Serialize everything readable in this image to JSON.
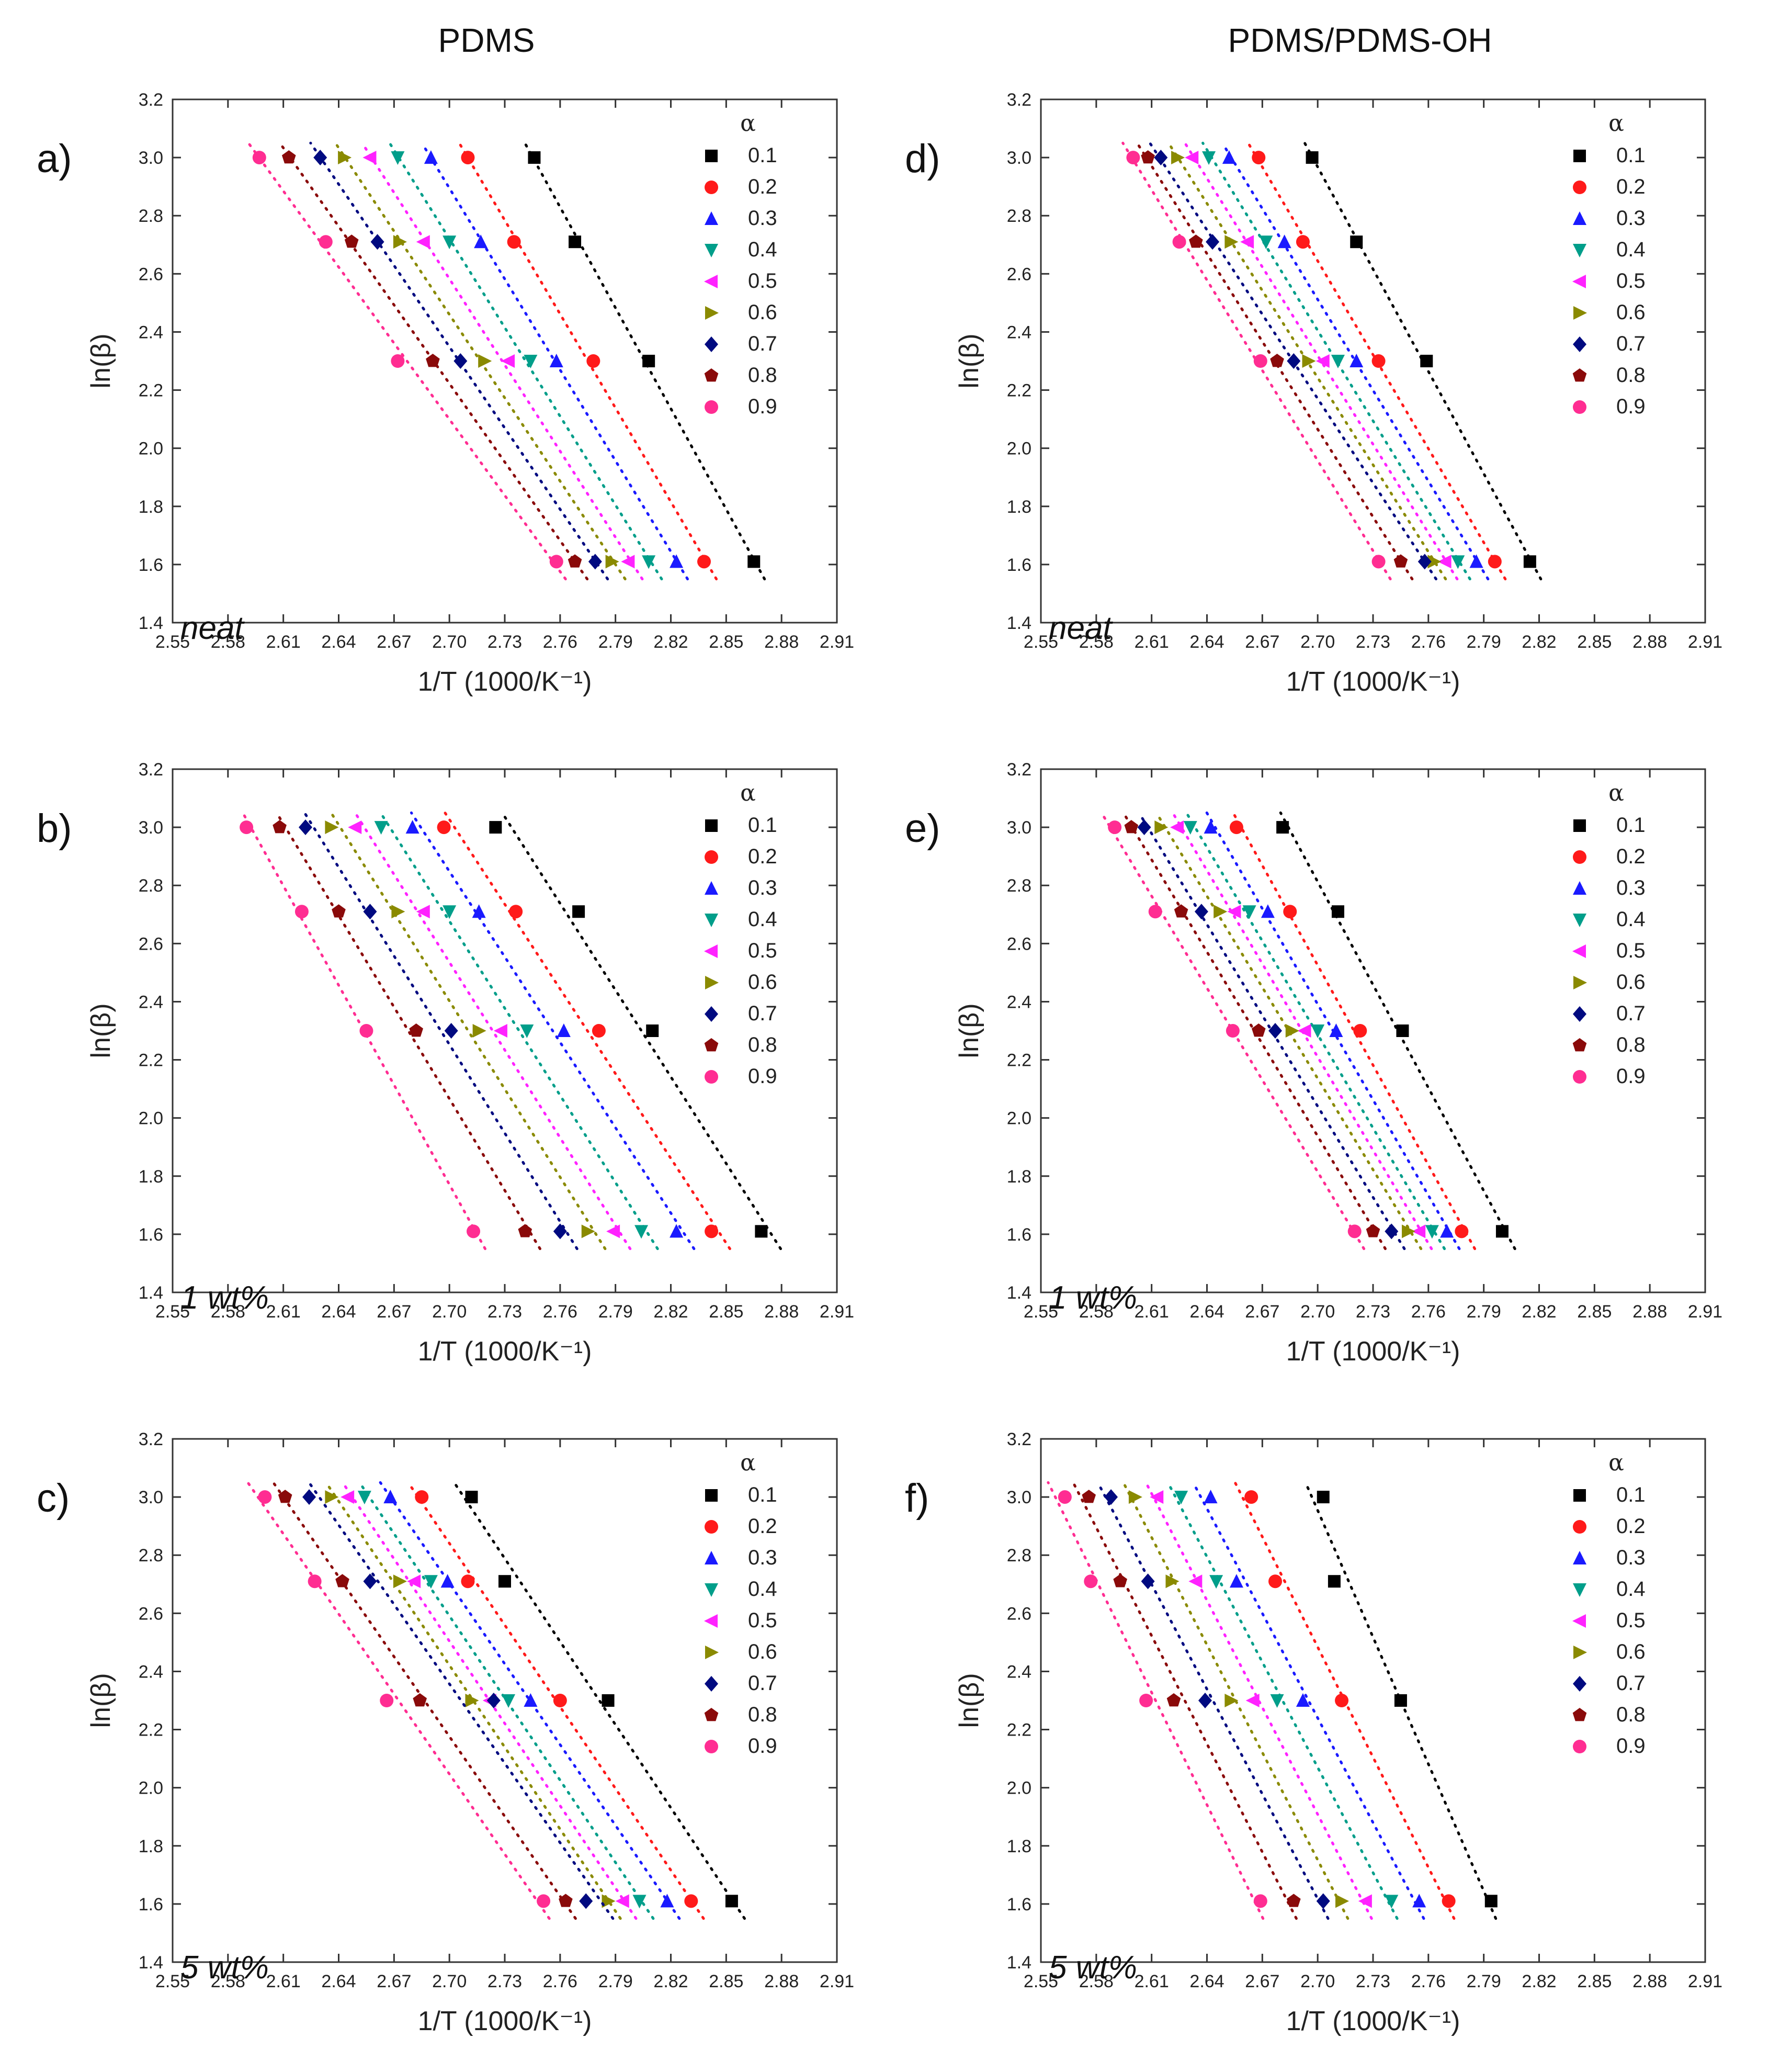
{
  "headers": {
    "left": "PDMS",
    "right": "PDMS/PDMS-OH"
  },
  "legend": {
    "title": "α",
    "series_names": [
      "0.1",
      "0.2",
      "0.3",
      "0.4",
      "0.5",
      "0.6",
      "0.7",
      "0.8",
      "0.9"
    ]
  },
  "series_colors": [
    "#000000",
    "#ff1a1a",
    "#1a1aff",
    "#009e8a",
    "#ff22ff",
    "#8a8a00",
    "#000a80",
    "#8a0a0a",
    "#ff2d92"
  ],
  "series_markers": [
    "square",
    "circle",
    "triangle-up",
    "triangle-down",
    "triangle-left",
    "triangle-right",
    "diamond",
    "pentagon",
    "circle"
  ],
  "chart_data": [
    {
      "panel": "a)",
      "type": "scatter",
      "label": "neat",
      "xlabel": "1/T (1000/K⁻¹)",
      "ylabel": "ln(β)",
      "xlim": [
        2.55,
        2.91
      ],
      "ylim": [
        1.4,
        3.2
      ],
      "xticks": [
        "2.55",
        "2.58",
        "2.61",
        "2.64",
        "2.67",
        "2.70",
        "2.73",
        "2.76",
        "2.79",
        "2.82",
        "2.85",
        "2.88",
        "2.91"
      ],
      "yticks": [
        "1.4",
        "1.6",
        "1.8",
        "2.0",
        "2.2",
        "2.4",
        "2.6",
        "2.8",
        "3.0",
        "3.2"
      ],
      "y_levels": [
        1.61,
        2.3,
        2.71,
        3.0
      ],
      "series": [
        {
          "name": "0.1",
          "x": [
            2.865,
            2.808,
            2.768,
            2.746
          ]
        },
        {
          "name": "0.2",
          "x": [
            2.838,
            2.778,
            2.735,
            2.71
          ]
        },
        {
          "name": "0.3",
          "x": [
            2.823,
            2.758,
            2.717,
            2.69
          ]
        },
        {
          "name": "0.4",
          "x": [
            2.808,
            2.744,
            2.7,
            2.672
          ]
        },
        {
          "name": "0.5",
          "x": [
            2.797,
            2.732,
            2.686,
            2.657
          ]
        },
        {
          "name": "0.6",
          "x": [
            2.788,
            2.719,
            2.673,
            2.643
          ]
        },
        {
          "name": "0.7",
          "x": [
            2.779,
            2.706,
            2.661,
            2.63
          ]
        },
        {
          "name": "0.8",
          "x": [
            2.768,
            2.691,
            2.647,
            2.613
          ]
        },
        {
          "name": "0.9",
          "x": [
            2.758,
            2.672,
            2.633,
            2.597
          ]
        }
      ]
    },
    {
      "panel": "b)",
      "type": "scatter",
      "label": "1 wt%",
      "xlabel": "1/T (1000/K⁻¹)",
      "ylabel": "ln(β)",
      "xlim": [
        2.55,
        2.91
      ],
      "ylim": [
        1.4,
        3.2
      ],
      "xticks": [
        "2.55",
        "2.58",
        "2.61",
        "2.64",
        "2.67",
        "2.70",
        "2.73",
        "2.76",
        "2.79",
        "2.82",
        "2.85",
        "2.88",
        "2.91"
      ],
      "yticks": [
        "1.4",
        "1.6",
        "1.8",
        "2.0",
        "2.2",
        "2.4",
        "2.6",
        "2.8",
        "3.0",
        "3.2"
      ],
      "y_levels": [
        1.61,
        2.3,
        2.71,
        3.0
      ],
      "series": [
        {
          "name": "0.1",
          "x": [
            2.869,
            2.81,
            2.77,
            2.725
          ]
        },
        {
          "name": "0.2",
          "x": [
            2.842,
            2.781,
            2.736,
            2.697
          ]
        },
        {
          "name": "0.3",
          "x": [
            2.823,
            2.762,
            2.716,
            2.68
          ]
        },
        {
          "name": "0.4",
          "x": [
            2.804,
            2.742,
            2.7,
            2.663
          ]
        },
        {
          "name": "0.5",
          "x": [
            2.789,
            2.728,
            2.686,
            2.649
          ]
        },
        {
          "name": "0.6",
          "x": [
            2.775,
            2.716,
            2.672,
            2.636
          ]
        },
        {
          "name": "0.7",
          "x": [
            2.76,
            2.701,
            2.657,
            2.622
          ]
        },
        {
          "name": "0.8",
          "x": [
            2.741,
            2.682,
            2.64,
            2.608
          ]
        },
        {
          "name": "0.9",
          "x": [
            2.713,
            2.655,
            2.62,
            2.59
          ]
        }
      ]
    },
    {
      "panel": "c)",
      "type": "scatter",
      "label": "5 wt%",
      "xlabel": "1/T (1000/K⁻¹)",
      "ylabel": "ln(β)",
      "xlim": [
        2.55,
        2.91
      ],
      "ylim": [
        1.4,
        3.2
      ],
      "xticks": [
        "2.55",
        "2.58",
        "2.61",
        "2.64",
        "2.67",
        "2.70",
        "2.73",
        "2.76",
        "2.79",
        "2.82",
        "2.85",
        "2.88",
        "2.91"
      ],
      "yticks": [
        "1.4",
        "1.6",
        "1.8",
        "2.0",
        "2.2",
        "2.4",
        "2.6",
        "2.8",
        "3.0",
        "3.2"
      ],
      "y_levels": [
        1.61,
        2.3,
        2.71,
        3.0
      ],
      "series": [
        {
          "name": "0.1",
          "x": [
            2.853,
            2.786,
            2.73,
            2.712
          ]
        },
        {
          "name": "0.2",
          "x": [
            2.831,
            2.76,
            2.71,
            2.685
          ]
        },
        {
          "name": "0.3",
          "x": [
            2.818,
            2.744,
            2.699,
            2.668
          ]
        },
        {
          "name": "0.4",
          "x": [
            2.803,
            2.732,
            2.69,
            2.654
          ]
        },
        {
          "name": "0.5",
          "x": [
            2.794,
            2.722,
            2.681,
            2.645
          ]
        },
        {
          "name": "0.6",
          "x": [
            2.786,
            2.712,
            2.673,
            2.636
          ]
        },
        {
          "name": "0.7",
          "x": [
            2.774,
            2.724,
            2.657,
            2.624
          ]
        },
        {
          "name": "0.8",
          "x": [
            2.763,
            2.684,
            2.642,
            2.611
          ]
        },
        {
          "name": "0.9",
          "x": [
            2.751,
            2.666,
            2.627,
            2.6
          ]
        }
      ]
    },
    {
      "panel": "d)",
      "type": "scatter",
      "label": "neat",
      "xlabel": "1/T (1000/K⁻¹)",
      "ylabel": "ln(β)",
      "xlim": [
        2.55,
        2.91
      ],
      "ylim": [
        1.4,
        3.2
      ],
      "xticks": [
        "2.55",
        "2.58",
        "2.61",
        "2.64",
        "2.67",
        "2.70",
        "2.73",
        "2.76",
        "2.79",
        "2.82",
        "2.85",
        "2.88",
        "2.91"
      ],
      "yticks": [
        "1.4",
        "1.6",
        "1.8",
        "2.0",
        "2.2",
        "2.4",
        "2.6",
        "2.8",
        "3.0",
        "3.2"
      ],
      "y_levels": [
        1.61,
        2.3,
        2.71,
        3.0
      ],
      "series": [
        {
          "name": "0.1",
          "x": [
            2.815,
            2.759,
            2.721,
            2.697
          ]
        },
        {
          "name": "0.2",
          "x": [
            2.796,
            2.733,
            2.692,
            2.668
          ]
        },
        {
          "name": "0.3",
          "x": [
            2.786,
            2.721,
            2.682,
            2.652
          ]
        },
        {
          "name": "0.4",
          "x": [
            2.776,
            2.711,
            2.672,
            2.641
          ]
        },
        {
          "name": "0.5",
          "x": [
            2.769,
            2.703,
            2.662,
            2.632
          ]
        },
        {
          "name": "0.6",
          "x": [
            2.763,
            2.695,
            2.653,
            2.624
          ]
        },
        {
          "name": "0.7",
          "x": [
            2.758,
            2.687,
            2.643,
            2.615
          ]
        },
        {
          "name": "0.8",
          "x": [
            2.745,
            2.678,
            2.634,
            2.608
          ]
        },
        {
          "name": "0.9",
          "x": [
            2.733,
            2.669,
            2.625,
            2.6
          ]
        }
      ]
    },
    {
      "panel": "e)",
      "type": "scatter",
      "label": "1 wt%",
      "xlabel": "1/T (1000/K⁻¹)",
      "ylabel": "ln(β)",
      "xlim": [
        2.55,
        2.91
      ],
      "ylim": [
        1.4,
        3.2
      ],
      "xticks": [
        "2.55",
        "2.58",
        "2.61",
        "2.64",
        "2.67",
        "2.70",
        "2.73",
        "2.76",
        "2.79",
        "2.82",
        "2.85",
        "2.88",
        "2.91"
      ],
      "yticks": [
        "1.4",
        "1.6",
        "1.8",
        "2.0",
        "2.2",
        "2.4",
        "2.6",
        "2.8",
        "3.0",
        "3.2"
      ],
      "y_levels": [
        1.61,
        2.3,
        2.71,
        3.0
      ],
      "series": [
        {
          "name": "0.1",
          "x": [
            2.8,
            2.746,
            2.711,
            2.681
          ]
        },
        {
          "name": "0.2",
          "x": [
            2.778,
            2.723,
            2.685,
            2.656
          ]
        },
        {
          "name": "0.3",
          "x": [
            2.77,
            2.71,
            2.673,
            2.642
          ]
        },
        {
          "name": "0.4",
          "x": [
            2.762,
            2.7,
            2.663,
            2.631
          ]
        },
        {
          "name": "0.5",
          "x": [
            2.755,
            2.693,
            2.655,
            2.624
          ]
        },
        {
          "name": "0.6",
          "x": [
            2.749,
            2.686,
            2.647,
            2.615
          ]
        },
        {
          "name": "0.7",
          "x": [
            2.74,
            2.677,
            2.637,
            2.606
          ]
        },
        {
          "name": "0.8",
          "x": [
            2.73,
            2.668,
            2.626,
            2.599
          ]
        },
        {
          "name": "0.9",
          "x": [
            2.72,
            2.654,
            2.612,
            2.59
          ]
        }
      ]
    },
    {
      "panel": "f)",
      "type": "scatter",
      "label": "5 wt%",
      "xlabel": "1/T (1000/K⁻¹)",
      "ylabel": "ln(β)",
      "xlim": [
        2.55,
        2.91
      ],
      "ylim": [
        1.4,
        3.2
      ],
      "xticks": [
        "2.55",
        "2.58",
        "2.61",
        "2.64",
        "2.67",
        "2.70",
        "2.73",
        "2.76",
        "2.79",
        "2.82",
        "2.85",
        "2.88",
        "2.91"
      ],
      "yticks": [
        "1.4",
        "1.6",
        "1.8",
        "2.0",
        "2.2",
        "2.4",
        "2.6",
        "2.8",
        "3.0",
        "3.2"
      ],
      "y_levels": [
        1.61,
        2.3,
        2.71,
        3.0
      ],
      "series": [
        {
          "name": "0.1",
          "x": [
            2.794,
            2.745,
            2.709,
            2.703
          ]
        },
        {
          "name": "0.2",
          "x": [
            2.771,
            2.713,
            2.677,
            2.664
          ]
        },
        {
          "name": "0.3",
          "x": [
            2.755,
            2.692,
            2.656,
            2.642
          ]
        },
        {
          "name": "0.4",
          "x": [
            2.74,
            2.678,
            2.645,
            2.626
          ]
        },
        {
          "name": "0.5",
          "x": [
            2.726,
            2.665,
            2.634,
            2.613
          ]
        },
        {
          "name": "0.6",
          "x": [
            2.713,
            2.653,
            2.621,
            2.601
          ]
        },
        {
          "name": "0.7",
          "x": [
            2.703,
            2.639,
            2.608,
            2.588
          ]
        },
        {
          "name": "0.8",
          "x": [
            2.687,
            2.622,
            2.593,
            2.576
          ]
        },
        {
          "name": "0.9",
          "x": [
            2.669,
            2.607,
            2.577,
            2.563
          ]
        }
      ]
    }
  ]
}
